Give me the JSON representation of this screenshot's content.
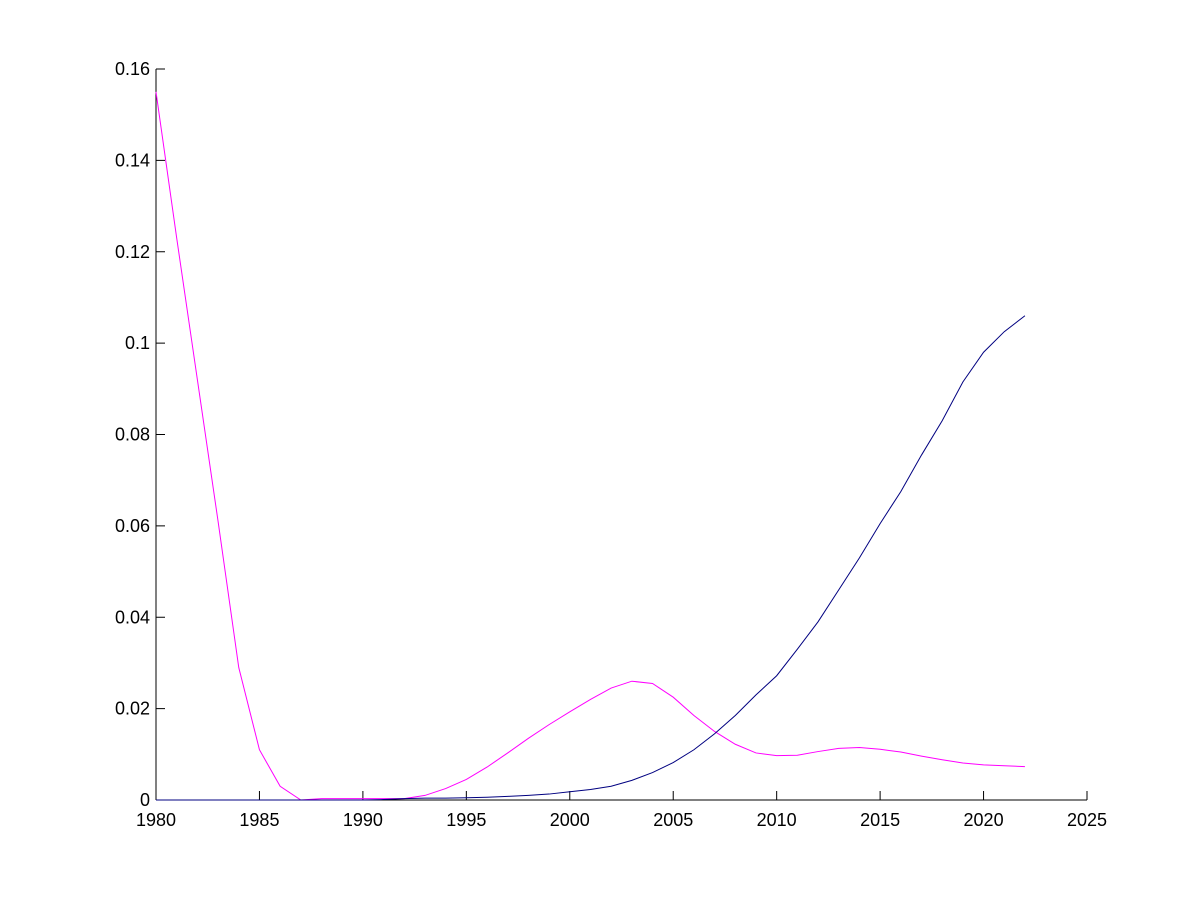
{
  "chart_data": {
    "type": "line",
    "x": [
      1980,
      1981,
      1982,
      1983,
      1984,
      1985,
      1986,
      1987,
      1988,
      1989,
      1990,
      1991,
      1992,
      1993,
      1994,
      1995,
      1996,
      1997,
      1998,
      1999,
      2000,
      2001,
      2002,
      2003,
      2004,
      2005,
      2006,
      2007,
      2008,
      2009,
      2010,
      2011,
      2012,
      2013,
      2014,
      2015,
      2016,
      2017,
      2018,
      2019,
      2020,
      2021,
      2022
    ],
    "series": [
      {
        "color": "#ff00ff",
        "values": [
          0.155,
          0.123,
          0.092,
          0.061,
          0.029,
          0.011,
          0.003,
          0.0,
          0.0003,
          0.0003,
          0.0003,
          0.0003,
          0.0003,
          0.001,
          0.0025,
          0.0045,
          0.0072,
          0.0103,
          0.0135,
          0.0165,
          0.0193,
          0.022,
          0.0245,
          0.026,
          0.0255,
          0.0225,
          0.0185,
          0.015,
          0.0122,
          0.0103,
          0.0097,
          0.0098,
          0.0106,
          0.0113,
          0.0115,
          0.0111,
          0.0105,
          0.0096,
          0.0088,
          0.0081,
          0.0077,
          0.0075,
          0.0073
        ]
      },
      {
        "color": "#000080",
        "values": [
          0,
          0,
          0,
          0,
          0,
          0,
          0,
          0,
          0,
          0,
          0,
          0.0001,
          0.0003,
          0.0004,
          0.0004,
          0.0005,
          0.0006,
          0.0008,
          0.001,
          0.0013,
          0.0018,
          0.0023,
          0.003,
          0.0043,
          0.006,
          0.0082,
          0.011,
          0.0145,
          0.0185,
          0.023,
          0.0272,
          0.033,
          0.039,
          0.046,
          0.053,
          0.0605,
          0.0675,
          0.0755,
          0.083,
          0.0915,
          0.098,
          0.1025,
          0.106
        ]
      }
    ],
    "xlim": [
      1980,
      2025
    ],
    "xticks": [
      1980,
      1985,
      1990,
      1995,
      2000,
      2005,
      2010,
      2015,
      2020,
      2025
    ],
    "ylim": [
      0,
      0.16
    ],
    "yticks": [
      0,
      0.02,
      0.04,
      0.06,
      0.08,
      0.1,
      0.12,
      0.14,
      0.16
    ]
  }
}
